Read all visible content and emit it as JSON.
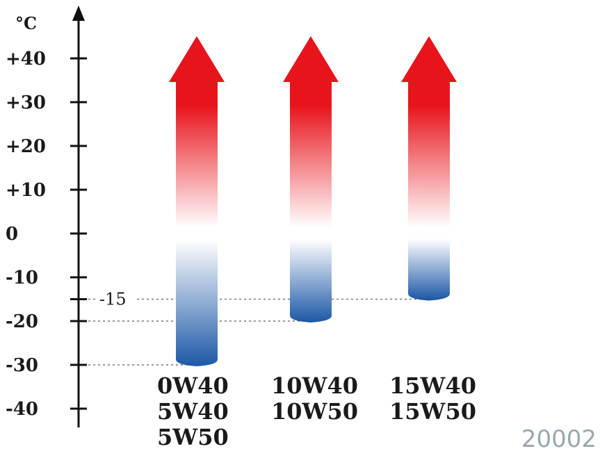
{
  "chart_data": {
    "type": "bar",
    "unit": "°C",
    "ylim": [
      -40,
      40
    ],
    "y_ticks": [
      40,
      30,
      20,
      10,
      0,
      -10,
      -20,
      -30,
      -40
    ],
    "y_tick_labels": [
      "+40",
      "+30",
      "+20",
      "+10",
      "0",
      "-10",
      "-20",
      "-30",
      "-40"
    ],
    "series": [
      {
        "grades": [
          "0W40",
          "5W40",
          "5W50"
        ],
        "min": -30,
        "max": 40
      },
      {
        "grades": [
          "10W40",
          "10W50"
        ],
        "min": -20,
        "max": 40
      },
      {
        "grades": [
          "15W40",
          "15W50"
        ],
        "min": -15,
        "max": 40
      }
    ],
    "reference_lines": [
      {
        "value": -15,
        "label": "-15"
      },
      {
        "value": -20,
        "label": ""
      },
      {
        "value": -30,
        "label": ""
      }
    ],
    "colors": {
      "hot": "#e8141b",
      "neutral": "#ffffff",
      "cold": "#1f5aa8",
      "axis": "#111111",
      "dashes": "#777777"
    },
    "figure_code": "20002"
  }
}
